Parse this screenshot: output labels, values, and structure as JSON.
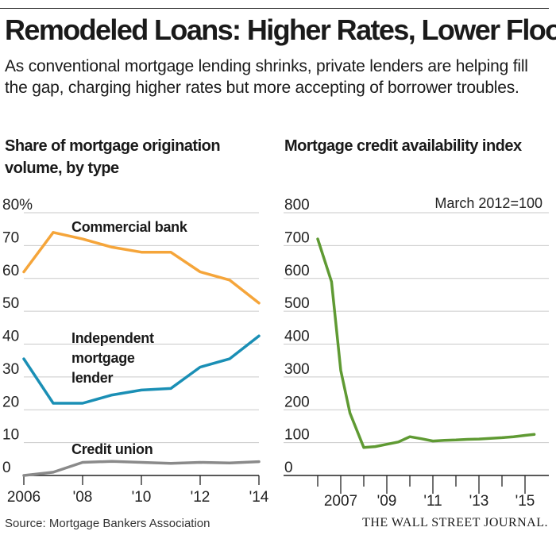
{
  "headline": "Remodeled Loans: Higher Rates, Lower Floor",
  "dek": "As conventional mortgage lending shrinks, private lenders are helping fill the gap, charging higher rates but more accepting of borrower troubles.",
  "source": "Source: Mortgage Bankers Association",
  "publisher": "THE WALL STREET JOURNAL.",
  "colors": {
    "commercial_bank": "#f5a53a",
    "independent_lender": "#1a8fb5",
    "credit_union": "#8a8a8a",
    "credit_index": "#5f9a33",
    "gridline": "#c9c9c9",
    "axis": "#222222"
  },
  "chart_data": [
    {
      "type": "line",
      "title": "Share of mortgage origination volume, by type",
      "x": [
        2006,
        2007,
        2008,
        2009,
        2010,
        2011,
        2012,
        2013,
        2014
      ],
      "x_tick_values": [
        2006,
        2008,
        2010,
        2012,
        2014
      ],
      "x_tick_labels": [
        "2006",
        "'08",
        "'10",
        "'12",
        "'14"
      ],
      "y_tick_values": [
        0,
        10,
        20,
        30,
        40,
        50,
        60,
        70,
        80
      ],
      "y_tick_labels": [
        "0",
        "10",
        "20",
        "30",
        "40",
        "50",
        "60",
        "70",
        "80%"
      ],
      "ylim": [
        0,
        80
      ],
      "grid": true,
      "series": [
        {
          "name": "Commercial bank",
          "label_lines": [
            "Commercial bank"
          ],
          "color_key": "commercial_bank",
          "values": [
            62,
            74,
            72,
            69.5,
            68,
            68,
            62,
            59.5,
            52.5
          ]
        },
        {
          "name": "Independent mortgage lender",
          "label_lines": [
            "Independent",
            "mortgage",
            "lender"
          ],
          "color_key": "independent_lender",
          "values": [
            35.5,
            22,
            22,
            24.5,
            26,
            26.5,
            33,
            35.5,
            42.5
          ]
        },
        {
          "name": "Credit union",
          "label_lines": [
            "Credit union"
          ],
          "color_key": "credit_union",
          "values": [
            0,
            1,
            4,
            4.3,
            4,
            3.7,
            4,
            3.8,
            4.2
          ]
        }
      ]
    },
    {
      "type": "line",
      "title": "Mortgage credit availability index",
      "annotation": "March 2012=100",
      "x": [
        2006,
        2007,
        2008,
        2009,
        2010,
        2011,
        2012,
        2013,
        2014,
        2015
      ],
      "x_tick_values": [
        2007,
        2009,
        2011,
        2013,
        2015
      ],
      "x_tick_labels": [
        "2007",
        "'09",
        "'11",
        "'13",
        "'15"
      ],
      "y_tick_values": [
        0,
        100,
        200,
        300,
        400,
        500,
        600,
        700,
        800
      ],
      "y_tick_labels": [
        "0",
        "100",
        "200",
        "300",
        "400",
        "500",
        "600",
        "700",
        "800"
      ],
      "ylim": [
        0,
        800
      ],
      "grid": true,
      "series": [
        {
          "name": "Mortgage credit availability index",
          "color_key": "credit_index",
          "x": [
            2006.0,
            2006.6,
            2007.0,
            2007.4,
            2008.0,
            2008.5,
            2009.0,
            2009.5,
            2010.0,
            2010.5,
            2011.0,
            2011.5,
            2012.0,
            2012.5,
            2013.0,
            2013.5,
            2014.0,
            2014.5,
            2015.0,
            2015.4
          ],
          "values": [
            720,
            590,
            320,
            190,
            85,
            88,
            95,
            102,
            118,
            112,
            105,
            107,
            108,
            110,
            111,
            113,
            115,
            118,
            122,
            125
          ]
        }
      ]
    }
  ]
}
